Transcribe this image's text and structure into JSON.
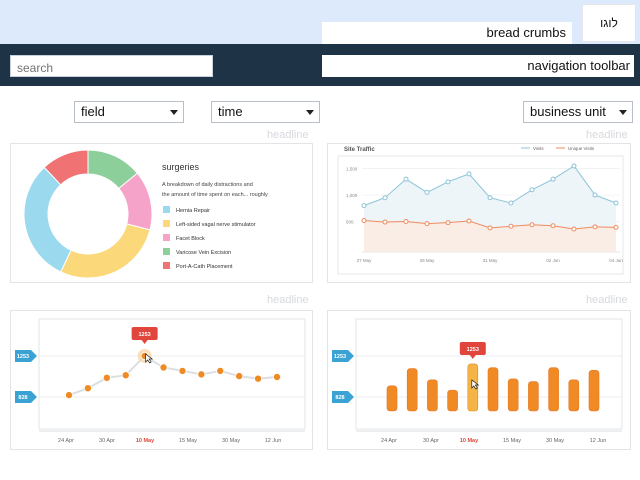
{
  "header": {
    "logo": "לוגו",
    "breadcrumbs": "bread crumbs",
    "search_placeholder": "search",
    "navigation": "navigation toolbar"
  },
  "filters": {
    "field": "field",
    "time": "time",
    "business_unit": "business unit"
  },
  "headlines": [
    "headline",
    "headline",
    "headline",
    "headline"
  ],
  "colors": {
    "topbar": "#dceafc",
    "navband": "#1f3347",
    "orange": "#f08a24",
    "red_tooltip": "#e0463b",
    "blue_tag": "#3aa3d4"
  },
  "chart_data": [
    {
      "type": "pie",
      "title": "surgeries",
      "description": [
        "A breakdown of daily distractions and",
        "the amount of time spent on each... roughly"
      ],
      "categories": [
        "Hernia Repair",
        "Left-sided vagal nerve stimulator",
        "Facet Block",
        "Varicose Vein Excision",
        "Port-A-Cath Placement"
      ],
      "values": [
        31,
        28,
        15,
        14,
        12
      ],
      "colors": [
        "#9ad9ee",
        "#fbd97a",
        "#f5a3c8",
        "#8ccf9a",
        "#f07272"
      ],
      "legend": "right"
    },
    {
      "type": "area",
      "title": "Site Traffic",
      "legend_labels": [
        "Visits",
        "Unique Visits"
      ],
      "x_ticks": [
        "27 May",
        "29 May",
        "31 May",
        "02 Jun",
        "04 Jun"
      ],
      "y_ticks": [
        "1,500",
        "1,000",
        "500"
      ],
      "ylim": [
        0,
        1700
      ],
      "series": [
        {
          "name": "Visits",
          "color": "#8cc4d8",
          "values": [
            800,
            950,
            1300,
            1050,
            1250,
            1400,
            950,
            850,
            1100,
            1300,
            1550,
            1000,
            850
          ]
        },
        {
          "name": "Unique Visits",
          "color": "#ef8b5e",
          "values": [
            520,
            490,
            500,
            460,
            480,
            510,
            380,
            410,
            440,
            420,
            360,
            400,
            390
          ]
        }
      ]
    },
    {
      "type": "line",
      "x_ticks": [
        "24 Apr",
        "30 Apr",
        "10 May",
        "15 May",
        "30 May",
        "12 Jun"
      ],
      "highlight_tick": "10 May",
      "tags": [
        "1253",
        "828"
      ],
      "tooltip": "1253",
      "ylim": [
        500,
        1600
      ],
      "values": [
        800,
        880,
        1000,
        1030,
        1253,
        1120,
        1080,
        1040,
        1080,
        1020,
        990,
        1010
      ]
    },
    {
      "type": "bar",
      "x_ticks": [
        "24 Apr",
        "30 Apr",
        "10 May",
        "15 May",
        "30 May",
        "12 Jun"
      ],
      "highlight_tick": "10 May",
      "tags": [
        "1253",
        "828"
      ],
      "tooltip": "1253",
      "ylim": [
        500,
        1600
      ],
      "values": [
        1000,
        1200,
        1070,
        950,
        1253,
        1210,
        1080,
        1050,
        1210,
        1070,
        1180
      ]
    }
  ]
}
